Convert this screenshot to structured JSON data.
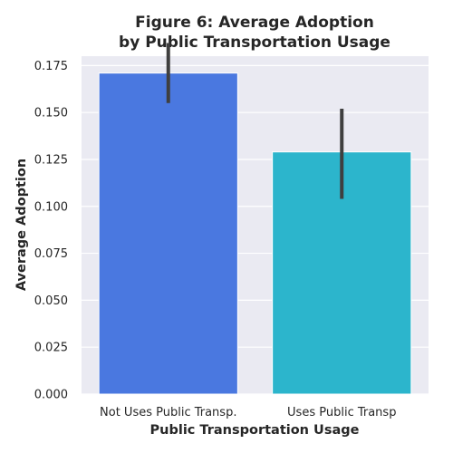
{
  "chart_data": {
    "type": "bar",
    "title_lines": [
      "Figure 6: Average Adoption",
      "by Public Transportation Usage"
    ],
    "xlabel": "Public Transportation Usage",
    "ylabel": "Average Adoption",
    "categories": [
      "Not Uses Public Transp.",
      "Uses Public Transp"
    ],
    "values": [
      0.171,
      0.129
    ],
    "error_bars": [
      {
        "low": 0.155,
        "high": 0.187
      },
      {
        "low": 0.104,
        "high": 0.152
      }
    ],
    "colors": [
      "#4a78e0",
      "#2cb5cc"
    ],
    "ylim": [
      0,
      0.18
    ],
    "yticks": [
      "0.000",
      "0.025",
      "0.050",
      "0.075",
      "0.100",
      "0.125",
      "0.150",
      "0.175"
    ],
    "grid": true,
    "background_color": "#eaeaf2"
  }
}
